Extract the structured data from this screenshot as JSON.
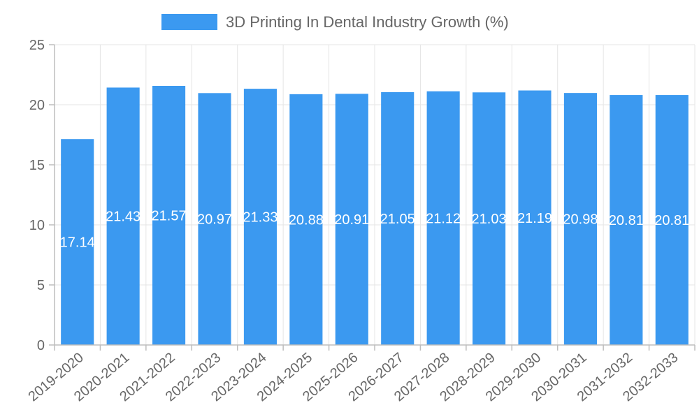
{
  "chart_data": {
    "type": "bar",
    "title": "",
    "xlabel": "",
    "ylabel": "",
    "ylim": [
      0,
      25
    ],
    "yticks": [
      0,
      5,
      10,
      15,
      20,
      25
    ],
    "grid": true,
    "legend_position": "top-center",
    "series": [
      {
        "name": "3D Printing In Dental Industry Growth (%)",
        "color": "#3b99f0",
        "values": [
          17.14,
          21.43,
          21.57,
          20.97,
          21.33,
          20.88,
          20.91,
          21.05,
          21.12,
          21.03,
          21.19,
          20.98,
          20.81,
          20.81
        ]
      }
    ],
    "categories": [
      "2019-2020",
      "2020-2021",
      "2021-2022",
      "2022-2023",
      "2023-2024",
      "2024-2025",
      "2025-2026",
      "2026-2027",
      "2027-2028",
      "2028-2029",
      "2029-2030",
      "2030-2031",
      "2031-2032",
      "2032-2033"
    ]
  }
}
